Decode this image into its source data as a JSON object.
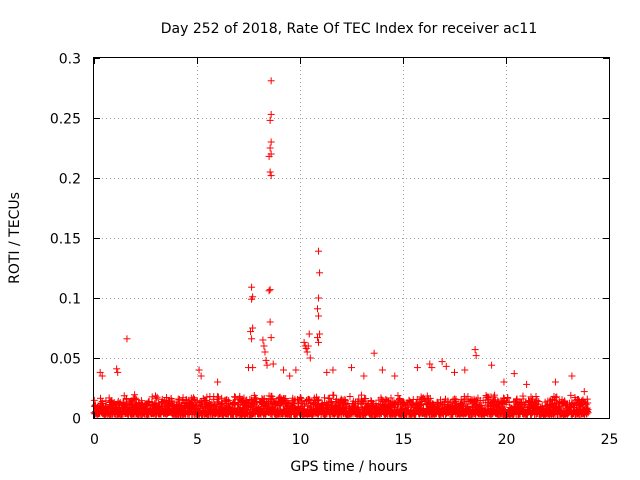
{
  "chart_data": {
    "type": "scatter",
    "title": "Day 252 of 2018, Rate Of TEC Index for receiver ac11",
    "xlabel": "GPS time / hours",
    "ylabel": "ROTI / TECUs",
    "xlim": [
      0,
      25
    ],
    "ylim": [
      0,
      0.3
    ],
    "xticks": [
      0,
      5,
      10,
      15,
      20,
      25
    ],
    "xtick_labels": [
      "0",
      "5",
      "10",
      "15",
      "20",
      "25"
    ],
    "yticks": [
      0,
      0.05,
      0.1,
      0.15,
      0.2,
      0.25,
      0.3
    ],
    "ytick_labels": [
      "0",
      "0.05",
      "0.1",
      "0.15",
      "0.2",
      "0.25",
      "0.3"
    ],
    "grid": true,
    "marker": "+",
    "color": "#ff0000",
    "series": [
      {
        "name": "ROTI",
        "x": [
          1.6,
          8.6,
          8.6,
          8.55,
          8.6,
          8.55,
          8.6,
          8.5,
          8.55,
          8.6,
          8.55,
          8.5,
          8.55,
          8.6,
          10.9,
          10.95,
          10.9,
          10.85,
          10.9,
          10.95,
          10.85,
          10.9,
          7.65,
          7.7,
          7.65,
          7.7,
          7.6,
          7.65,
          7.7,
          8.2,
          8.25,
          8.3,
          8.35,
          8.4,
          8.7,
          10.2,
          10.25,
          10.3,
          10.35,
          10.4,
          10.45,
          10.5,
          0.3,
          0.4,
          1.1,
          1.15,
          5.1,
          5.2,
          6.0,
          7.5,
          9.2,
          9.5,
          9.8,
          11.3,
          11.6,
          12.5,
          13.1,
          13.6,
          14.0,
          14.6,
          15.7,
          16.3,
          16.4,
          16.9,
          17.1,
          17.5,
          18.0,
          18.5,
          18.55,
          19.3,
          19.9,
          20.4,
          21.0,
          22.4,
          23.2,
          23.8
        ],
        "y": [
          0.066,
          0.281,
          0.253,
          0.248,
          0.23,
          0.225,
          0.22,
          0.218,
          0.205,
          0.202,
          0.107,
          0.106,
          0.08,
          0.067,
          0.139,
          0.121,
          0.1,
          0.091,
          0.085,
          0.07,
          0.067,
          0.063,
          0.109,
          0.101,
          0.099,
          0.075,
          0.072,
          0.066,
          0.042,
          0.065,
          0.06,
          0.055,
          0.048,
          0.044,
          0.045,
          0.063,
          0.06,
          0.058,
          0.055,
          0.06,
          0.07,
          0.05,
          0.038,
          0.035,
          0.041,
          0.038,
          0.04,
          0.035,
          0.03,
          0.042,
          0.04,
          0.035,
          0.04,
          0.038,
          0.04,
          0.042,
          0.035,
          0.054,
          0.04,
          0.035,
          0.042,
          0.045,
          0.042,
          0.047,
          0.043,
          0.038,
          0.04,
          0.057,
          0.052,
          0.044,
          0.03,
          0.037,
          0.028,
          0.03,
          0.035,
          0.022
        ],
        "band": {
          "x_range": [
            0,
            24
          ],
          "y_low": 0.003,
          "y_high": 0.02,
          "n_points": 2400,
          "note": "dense continuous band of ROTI points"
        }
      }
    ]
  }
}
